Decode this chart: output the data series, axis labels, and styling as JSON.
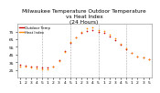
{
  "title": "Milwaukee Temperature Outdoor Temperature\nvs Heat Index\n(24 Hours)",
  "x_labels": [
    "1",
    "2",
    "3",
    "4",
    "5",
    "1",
    "2",
    "3",
    "4",
    "5",
    "1",
    "2",
    "3",
    "4",
    "5",
    "1",
    "2",
    "3",
    "4",
    "5",
    "1",
    "2",
    "3",
    "5"
  ],
  "hours": [
    0,
    1,
    2,
    3,
    4,
    5,
    6,
    7,
    8,
    9,
    10,
    11,
    12,
    13,
    14,
    15,
    16,
    17,
    18,
    19,
    20,
    21,
    22,
    23
  ],
  "outdoor_temp": [
    32,
    31,
    30,
    29,
    28,
    28,
    30,
    38,
    50,
    60,
    67,
    73,
    76,
    77,
    74,
    73,
    69,
    64,
    58,
    52,
    47,
    43,
    41,
    39
  ],
  "heat_index": [
    30,
    29,
    28,
    27,
    26,
    26,
    29,
    37,
    49,
    61,
    68,
    75,
    79,
    81,
    77,
    76,
    71,
    66,
    59,
    53,
    47,
    43,
    41,
    39
  ],
  "outdoor_color": "#cc0000",
  "heat_color": "#ff8800",
  "legend_labels": [
    "Outdoor Temp",
    "Heat Index"
  ],
  "ylim": [
    15,
    85
  ],
  "yticks": [
    25,
    35,
    45,
    55,
    65,
    75
  ],
  "background_color": "#ffffff",
  "grid_color": "#888888",
  "vline_positions": [
    4,
    9,
    14,
    19
  ],
  "title_fontsize": 4.2,
  "tick_fontsize": 3.2,
  "legend_fontsize": 2.8
}
